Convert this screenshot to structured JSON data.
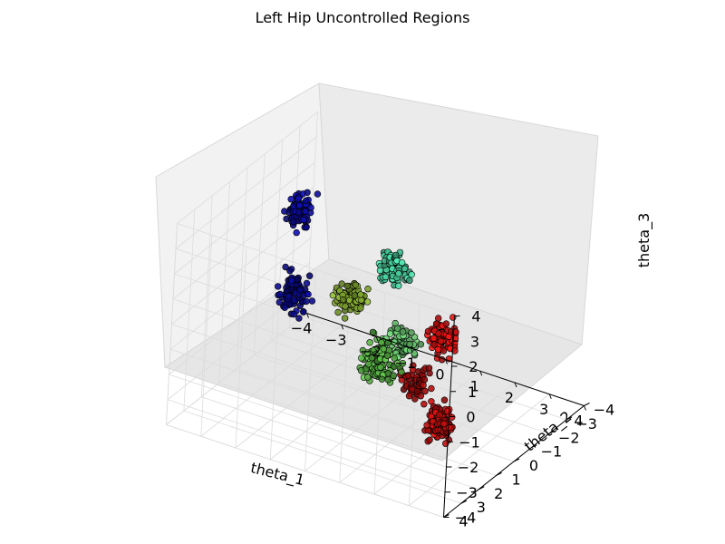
{
  "chart_data": {
    "type": "scatter",
    "title": "Left Hip Uncontrolled Regions",
    "xlabel": "theta_1",
    "ylabel": "theta_2",
    "zlabel": "theta_3",
    "xlim": [
      -4,
      4
    ],
    "ylim": [
      -4,
      4
    ],
    "zlim": [
      -4,
      4
    ],
    "x_ticks": [
      "−4",
      "−3",
      "−2",
      "−1",
      "0",
      "1",
      "2",
      "3",
      "4"
    ],
    "y_ticks": [
      "−4",
      "−3",
      "−2",
      "−1",
      "0",
      "1",
      "2",
      "3",
      "4"
    ],
    "z_ticks": [
      "−4",
      "−3",
      "−2",
      "−1",
      "0",
      "1",
      "2",
      "3",
      "4"
    ],
    "grid": true,
    "colormap": [
      "#00007f",
      "#0000ff",
      "#2a8f8f",
      "#4fe8a8",
      "#a6ff5a",
      "#d9ff3a",
      "#ff3a00",
      "#c00000",
      "#7f0000"
    ],
    "clusters": [
      {
        "name": "",
        "center": [
          -3.2,
          -1.5,
          1.8
        ],
        "spread": [
          0.5,
          0.5,
          1.0
        ],
        "color": "#0b0b8a",
        "n": 90
      },
      {
        "name": "",
        "center": [
          -3.2,
          -1.5,
          -1.5
        ],
        "spread": [
          0.5,
          0.5,
          1.2
        ],
        "color": "#0a0a7a",
        "n": 90
      },
      {
        "name": "",
        "center": [
          -0.8,
          0.2,
          0.4
        ],
        "spread": [
          0.6,
          0.6,
          0.8
        ],
        "color": "#6f8f2a",
        "n": 90
      },
      {
        "name": "",
        "center": [
          0.0,
          0.0,
          -1.8
        ],
        "spread": [
          0.7,
          0.6,
          1.2
        ],
        "color": "#4c9a3c",
        "n": 110
      },
      {
        "name": "",
        "center": [
          0.6,
          0.6,
          2.4
        ],
        "spread": [
          0.5,
          0.5,
          0.9
        ],
        "color": "#3fb58a",
        "n": 90
      },
      {
        "name": "",
        "center": [
          1.0,
          0.8,
          -0.2
        ],
        "spread": [
          0.6,
          0.5,
          0.8
        ],
        "color": "#5aa860",
        "n": 80
      },
      {
        "name": "",
        "center": [
          3.0,
          2.5,
          1.8
        ],
        "spread": [
          0.5,
          0.5,
          1.0
        ],
        "color": "#c01010",
        "n": 80
      },
      {
        "name": "",
        "center": [
          3.0,
          2.5,
          -1.5
        ],
        "spread": [
          0.5,
          0.5,
          1.0
        ],
        "color": "#b00d0d",
        "n": 80
      },
      {
        "name": "",
        "center": [
          1.6,
          1.0,
          -1.5
        ],
        "spread": [
          0.5,
          0.5,
          0.9
        ],
        "color": "#8f0a0a",
        "n": 60
      },
      {
        "name": "",
        "center": [
          2.2,
          0.5,
          -3.1
        ],
        "spread": [
          0.3,
          0.3,
          0.4
        ],
        "color": "#a00c0c",
        "n": 40
      }
    ]
  }
}
